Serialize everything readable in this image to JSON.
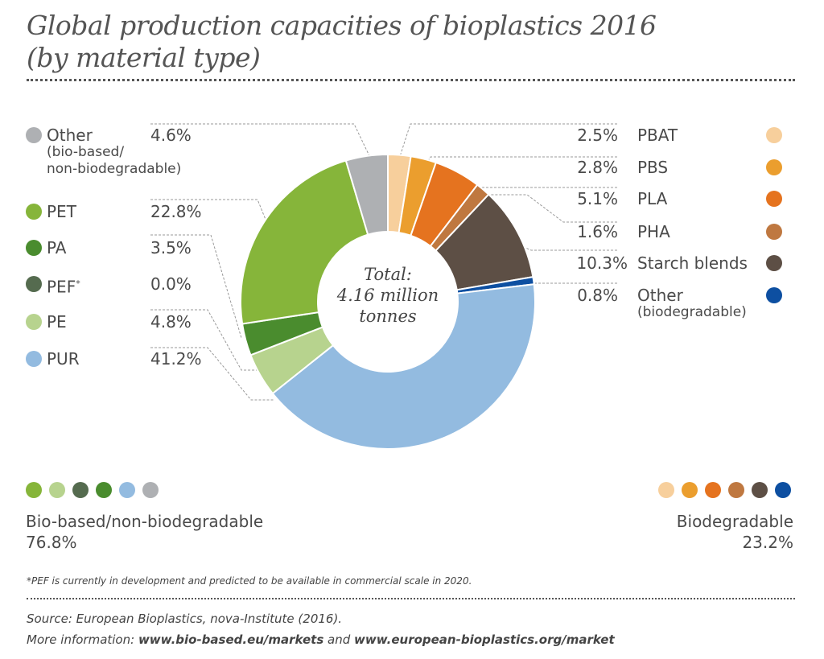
{
  "chart_data": {
    "type": "pie",
    "variant": "donut",
    "title": "Global production capacities of bioplastics 2016",
    "subtitle": "(by material type)",
    "unit": "%",
    "center_label": {
      "line1": "Total:",
      "line2": "4.16 million",
      "line3": "tonnes"
    },
    "slices": [
      {
        "label": "PBAT",
        "value": 2.5,
        "display": "2.5%",
        "color": "#f7cf9c",
        "group": "biodegradable"
      },
      {
        "label": "PBS",
        "value": 2.8,
        "display": "2.8%",
        "color": "#eb9e2e",
        "group": "biodegradable"
      },
      {
        "label": "PLA",
        "value": 5.1,
        "display": "5.1%",
        "color": "#e5731f",
        "group": "biodegradable"
      },
      {
        "label": "PHA",
        "value": 1.6,
        "display": "1.6%",
        "color": "#bf7840",
        "group": "biodegradable"
      },
      {
        "label": "Starch blends",
        "value": 10.3,
        "display": "10.3%",
        "color": "#5d4f45",
        "group": "biodegradable"
      },
      {
        "label": "Other",
        "sublabel": "(biodegradable)",
        "value": 0.8,
        "display": "0.8%",
        "color": "#0d4fa1",
        "group": "biodegradable"
      },
      {
        "label": "PUR",
        "value": 41.2,
        "display": "41.2%",
        "color": "#93bbe0",
        "group": "bio-based"
      },
      {
        "label": "PE",
        "value": 4.8,
        "display": "4.8%",
        "color": "#b7d38e",
        "group": "bio-based"
      },
      {
        "label": "PEF",
        "sup": "*",
        "value": 0.0,
        "display": "0.0%",
        "color": "#556b4f",
        "group": "bio-based"
      },
      {
        "label": "PA",
        "value": 3.5,
        "display": "3.5%",
        "color": "#4a8c2e",
        "group": "bio-based"
      },
      {
        "label": "PET",
        "value": 22.8,
        "display": "22.8%",
        "color": "#86b53a",
        "group": "bio-based"
      },
      {
        "label": "Other",
        "sublabel": "(bio-based/",
        "sublabel2": "non-biodegradable)",
        "value": 4.6,
        "display": "4.6%",
        "color": "#aeb0b3",
        "group": "bio-based"
      }
    ],
    "groups": {
      "bio_based": {
        "label": "Bio-based/non-biodegradable",
        "value": "76.8%",
        "colors": [
          "#86b53a",
          "#b7d38e",
          "#556b4f",
          "#4a8c2e",
          "#93bbe0",
          "#aeb0b3"
        ]
      },
      "biodegradable": {
        "label": "Biodegradable",
        "value": "23.2%",
        "colors": [
          "#f7cf9c",
          "#eb9e2e",
          "#e5731f",
          "#bf7840",
          "#5d4f45",
          "#0d4fa1"
        ]
      }
    },
    "legend": "left and right of chart"
  },
  "footnote": "*PEF is currently in development and predicted to be available in commercial scale in 2020.",
  "source": "Source: European Bioplastics, nova-Institute (2016).",
  "more_info": {
    "prefix": "More information: ",
    "link1": "www.bio-based.eu/markets",
    "middle": " and ",
    "link2": "www.european-bioplastics.org/market"
  }
}
